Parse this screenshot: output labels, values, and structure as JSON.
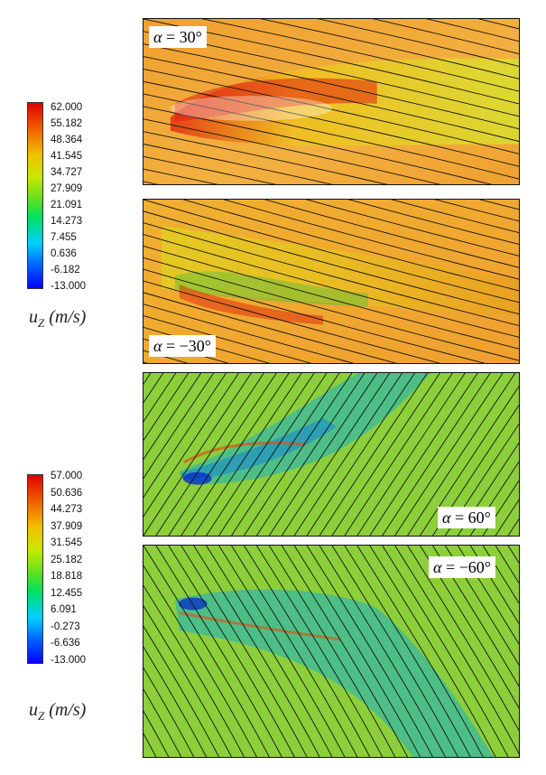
{
  "colorbars": [
    {
      "ticks": [
        "62.000",
        "55.182",
        "48.364",
        "41.545",
        "34.727",
        "27.909",
        "21.091",
        "14.273",
        "7.455",
        "0.636",
        "-6.182",
        "-13.000"
      ],
      "variable": "u",
      "subscript": "Z",
      "unit": "(m/s)"
    },
    {
      "ticks": [
        "57.000",
        "50.636",
        "44.273",
        "37.909",
        "31.545",
        "25.182",
        "18.818",
        "12.455",
        "6.091",
        "-0.273",
        "-6.636",
        "-13.000"
      ],
      "variable": "u",
      "subscript": "Z",
      "unit": "(m/s)"
    }
  ],
  "panels": [
    {
      "symbol": "α",
      "eq": " = ",
      "value": "30°",
      "background": "#f0a030",
      "wake": "#e8d020"
    },
    {
      "symbol": "α",
      "eq": " = ",
      "value": "−30°",
      "background": "#f0a030",
      "wake": "#e8b820"
    },
    {
      "symbol": "α",
      "eq": " = ",
      "value": "60°",
      "background": "#8ccf3a",
      "wake": "#30b8a8"
    },
    {
      "symbol": "α",
      "eq": " = ",
      "value": "−60°",
      "background": "#8ccf3a",
      "wake": "#30b8a8"
    }
  ],
  "colors": {
    "streamline": "#111111",
    "colormap": [
      "#0000ff",
      "#00d0ff",
      "#00e060",
      "#c8e800",
      "#f0c000",
      "#f06000",
      "#e00000"
    ]
  }
}
